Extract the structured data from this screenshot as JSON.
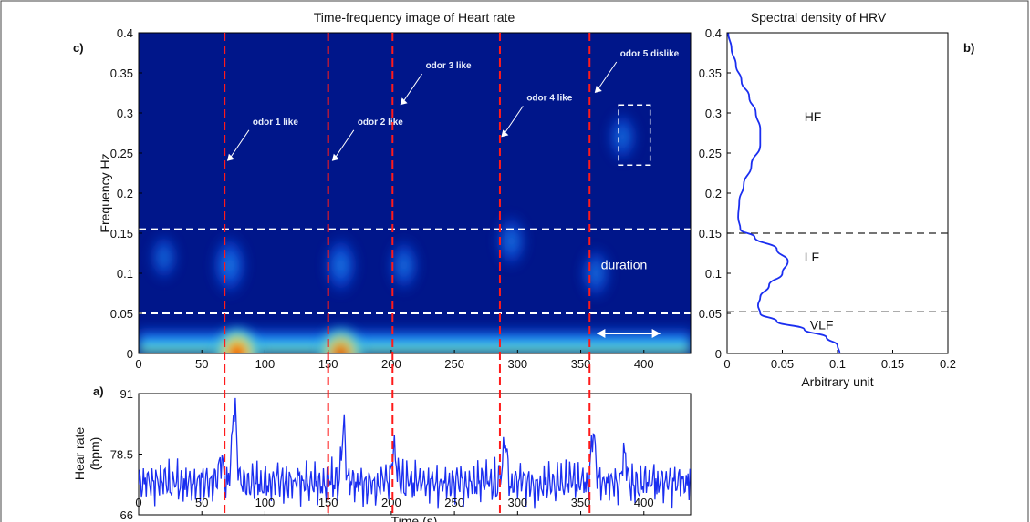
{
  "chart_data": [
    {
      "panel": "c)",
      "type": "heatmap",
      "title": "Time-frequency image of Heart rate",
      "ylabel": "Frequency Hz",
      "xlim": [
        0,
        437
      ],
      "ylim": [
        0,
        0.4
      ],
      "xticks": [
        "0",
        "50",
        "100",
        "150",
        "200",
        "250",
        "300",
        "350",
        "400"
      ],
      "yticks": [
        "0",
        "0.05",
        "0.1",
        "0.15",
        "0.2",
        "0.25",
        "0.3",
        "0.35",
        "0.4"
      ],
      "hlines": [
        0.05,
        0.155
      ],
      "blobs": [
        {
          "x": 78,
          "y": 0.0,
          "level": 1.0
        },
        {
          "x": 160,
          "y": 0.0,
          "level": 0.9
        },
        {
          "x": 72,
          "y": 0.11,
          "level": 0.45
        },
        {
          "x": 160,
          "y": 0.11,
          "level": 0.4
        },
        {
          "x": 210,
          "y": 0.11,
          "level": 0.3
        },
        {
          "x": 295,
          "y": 0.14,
          "level": 0.3
        },
        {
          "x": 362,
          "y": 0.1,
          "level": 0.28
        },
        {
          "x": 20,
          "y": 0.12,
          "level": 0.2
        },
        {
          "x": 383,
          "y": 0.27,
          "level": 0.25
        }
      ],
      "annotations": [
        {
          "text": "odor 1 like",
          "x": 70,
          "y": 0.24
        },
        {
          "text": "odor 2 like",
          "x": 153,
          "y": 0.24
        },
        {
          "text": "odor 3 like",
          "x": 207,
          "y": 0.31
        },
        {
          "text": "odor 4 like",
          "x": 287,
          "y": 0.27
        },
        {
          "text": "odor 5 dislike",
          "x": 361,
          "y": 0.325
        }
      ],
      "duration_label": "duration",
      "duration_x": [
        360,
        410
      ],
      "highlight_box": {
        "x": [
          380,
          405
        ],
        "y": [
          0.235,
          0.31
        ]
      }
    },
    {
      "panel": "b)",
      "type": "line",
      "title": "Spectral density of HRV",
      "xlabel": "Arbitrary unit",
      "xlim": [
        0,
        0.2
      ],
      "ylim": [
        0,
        0.4
      ],
      "xticks": [
        "0",
        "0.05",
        "0.1",
        "0.15",
        "0.2"
      ],
      "yticks": [
        "0",
        "0.05",
        "0.1",
        "0.15",
        "0.2",
        "0.25",
        "0.3",
        "0.35",
        "0.4"
      ],
      "hlines": [
        0.052,
        0.15
      ],
      "band_labels": [
        "HF",
        "LF",
        "VLF"
      ],
      "x": [
        0.102,
        0.1,
        0.09,
        0.07,
        0.045,
        0.03,
        0.028,
        0.03,
        0.038,
        0.05,
        0.055,
        0.045,
        0.025,
        0.012,
        0.01,
        0.011,
        0.015,
        0.022,
        0.03,
        0.03,
        0.026,
        0.02,
        0.013,
        0.008,
        0.004,
        0.001
      ],
      "y": [
        0.0,
        0.01,
        0.02,
        0.03,
        0.04,
        0.05,
        0.06,
        0.07,
        0.085,
        0.1,
        0.115,
        0.13,
        0.145,
        0.155,
        0.17,
        0.19,
        0.21,
        0.235,
        0.26,
        0.28,
        0.3,
        0.32,
        0.34,
        0.36,
        0.38,
        0.4
      ]
    },
    {
      "panel": "a)",
      "type": "line",
      "xlabel": "Time (s)",
      "ylabel": "Hear rate\n(bpm)",
      "xlim": [
        0,
        437
      ],
      "ylim": [
        66,
        91
      ],
      "xticks": [
        "0",
        "50",
        "100",
        "150",
        "200",
        "250",
        "300",
        "350",
        "400"
      ],
      "yticks": [
        "66",
        "78.5",
        "91"
      ],
      "peaks": [
        {
          "x": 65,
          "y": 80
        },
        {
          "x": 76,
          "y": 91
        },
        {
          "x": 162,
          "y": 86
        },
        {
          "x": 202,
          "y": 81
        },
        {
          "x": 290,
          "y": 84
        },
        {
          "x": 360,
          "y": 84
        },
        {
          "x": 385,
          "y": 81
        }
      ]
    }
  ],
  "event_lines_s": [
    68,
    150,
    201,
    286,
    357
  ]
}
